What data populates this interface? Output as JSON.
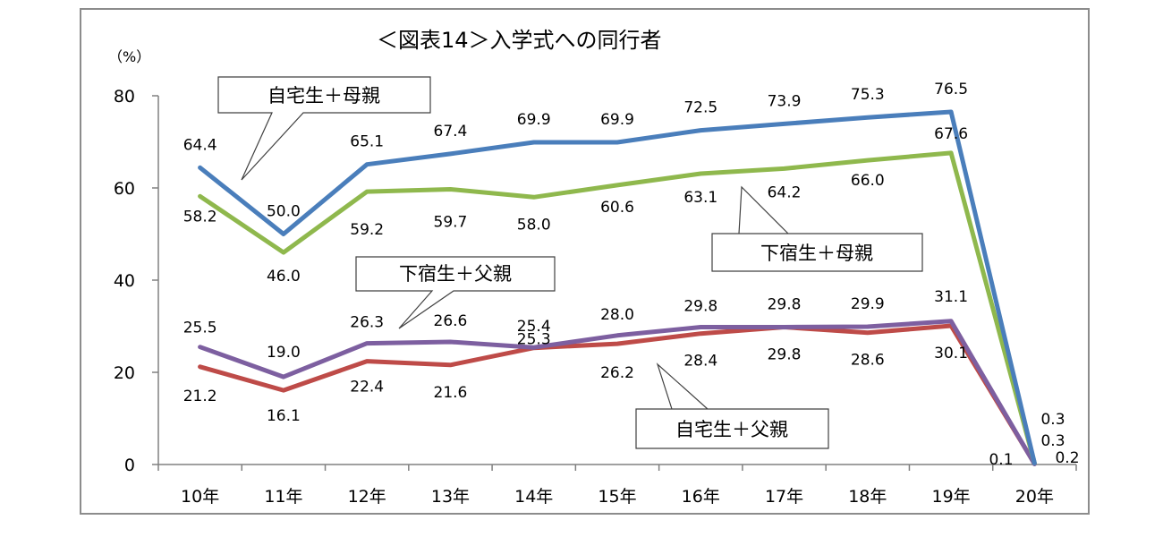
{
  "chart_data": {
    "type": "line",
    "title": "＜図表14＞入学式への同行者",
    "unit_label": "（%）",
    "ylim": [
      0,
      80
    ],
    "yticks": [
      0,
      20,
      40,
      60,
      80
    ],
    "categories": [
      "10年",
      "11年",
      "12年",
      "13年",
      "14年",
      "15年",
      "16年",
      "17年",
      "18年",
      "19年",
      "20年"
    ],
    "series": [
      {
        "name": "自宅生＋母親",
        "color": "#4a7ebb",
        "values": [
          64.4,
          50.0,
          65.1,
          67.4,
          69.9,
          69.9,
          72.5,
          73.9,
          75.3,
          76.5,
          0.3
        ],
        "labels": [
          "64.4",
          "50.0",
          "65.1",
          "67.4",
          "69.9",
          "69.9",
          "72.5",
          "73.9",
          "75.3",
          "76.5",
          "0.3"
        ]
      },
      {
        "name": "下宿生＋母親",
        "color": "#8fb84d",
        "values": [
          58.2,
          46.0,
          59.2,
          59.7,
          58.0,
          60.6,
          63.1,
          64.2,
          66.0,
          67.6,
          0.3
        ],
        "labels": [
          "58.2",
          "46.0",
          "59.2",
          "59.7",
          "58.0",
          "60.6",
          "63.1",
          "64.2",
          "66.0",
          "67.6",
          "0.3"
        ]
      },
      {
        "name": "下宿生＋父親",
        "color": "#7d5fa0",
        "values": [
          25.5,
          19.0,
          26.3,
          26.6,
          25.4,
          28.0,
          29.8,
          29.8,
          29.9,
          31.1,
          0.1
        ],
        "labels": [
          "25.5",
          "19.0",
          "26.3",
          "26.6",
          "25.4",
          "28.0",
          "29.8",
          "29.8",
          "29.9",
          "31.1",
          "0.1"
        ]
      },
      {
        "name": "自宅生＋父親",
        "color": "#be4b48",
        "values": [
          21.2,
          16.1,
          22.4,
          21.6,
          25.3,
          26.2,
          28.4,
          29.8,
          28.6,
          30.1,
          0.2
        ],
        "labels": [
          "21.2",
          "16.1",
          "22.4",
          "21.6",
          "25.3",
          "26.2",
          "28.4",
          "29.8",
          "28.6",
          "30.1",
          "0.2"
        ]
      }
    ],
    "grid": false,
    "legend": "callouts"
  }
}
